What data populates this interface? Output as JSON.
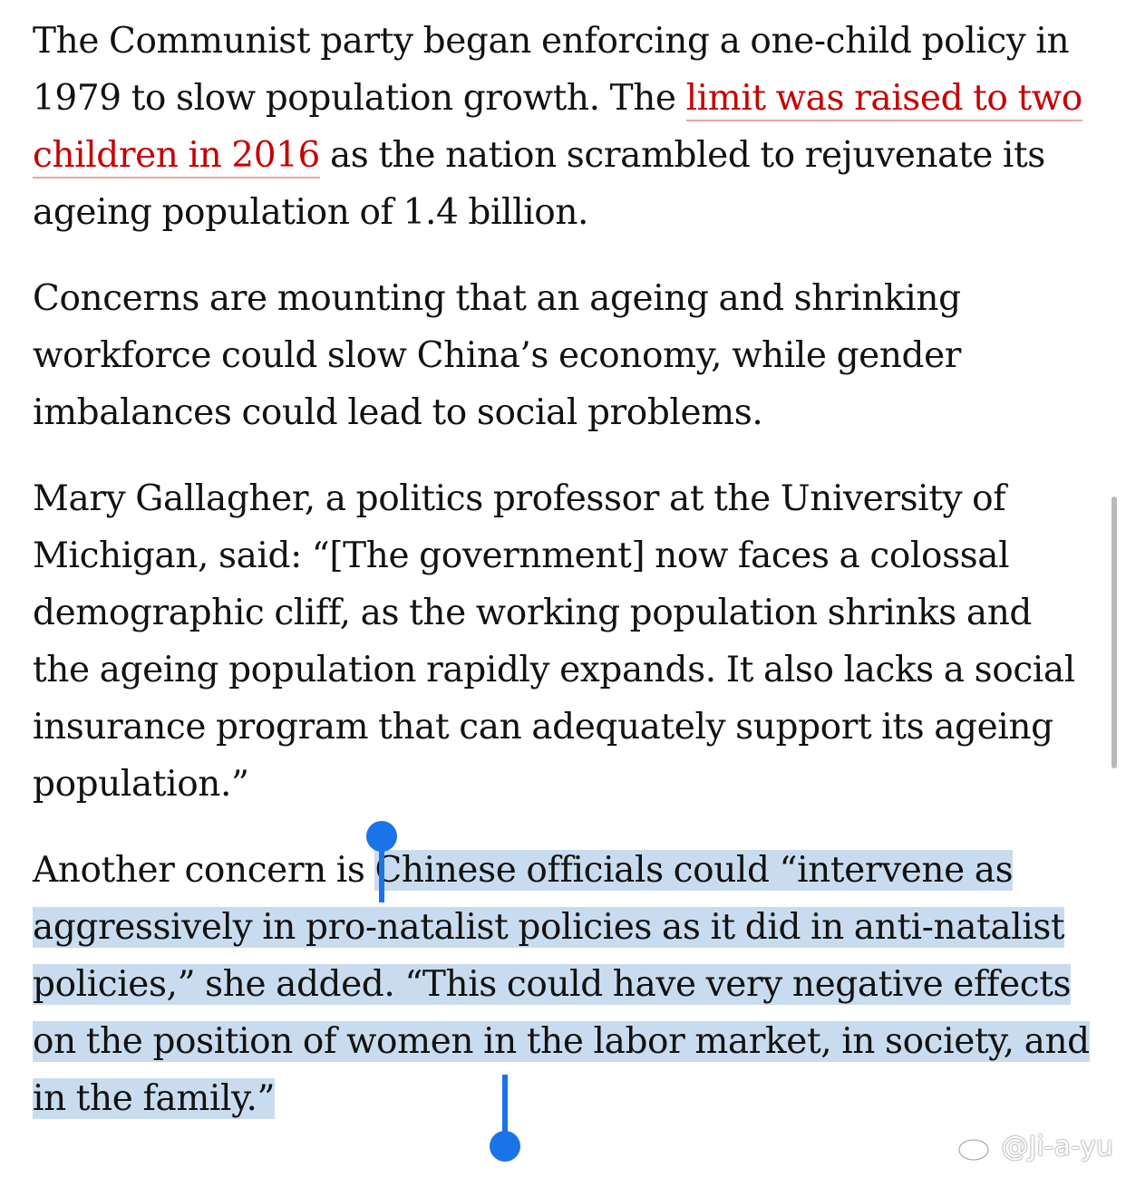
{
  "article": {
    "p1": {
      "before": "The Communist party began enforcing a one-child policy in 1979 to slow population growth. The ",
      "link": "limit was raised to two children in 2016",
      "after": " as the nation scrambled to rejuvenate its ageing population of 1.4 billion."
    },
    "p2": "Concerns are mounting that an ageing and shrinking workforce could slow China’s economy, while gender imbalances could lead to social problems.",
    "p3": "Mary Gallagher, a politics professor at the University of Michigan, said: “[The government] now faces a colossal demographic cliff, as the working population shrinks and the ageing population rapidly expands. It also lacks a social insurance program that can adequately support its ageing population.”",
    "p4": {
      "before": "Another concern is ",
      "selected": "Chinese officials could “intervene as aggressively in pro-natalist policies as it did in anti-natalist policies,” she added. “This could have very negative effects on the position of women in the labor market, in society, and in the family.”"
    }
  },
  "colors": {
    "link": "#c70000",
    "selection": "#c9dcef",
    "handle": "#1a73e8"
  },
  "watermark": {
    "icon": "weibo-icon",
    "text": "@Ji-a-yu"
  }
}
